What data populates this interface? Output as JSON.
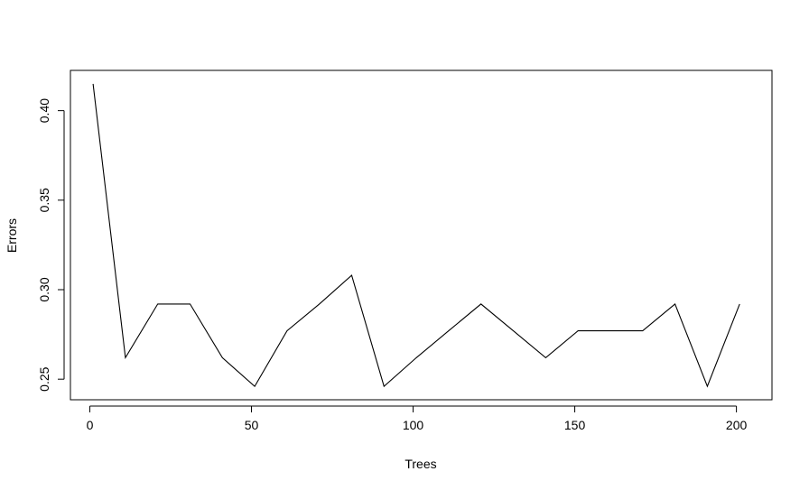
{
  "chart_data": {
    "type": "line",
    "title": "",
    "xlabel": "Trees",
    "ylabel": "Errors",
    "xlim": [
      -6,
      211
    ],
    "ylim": [
      0.2385,
      0.4225
    ],
    "x_ticks": [
      0,
      50,
      100,
      150,
      200
    ],
    "y_ticks": [
      0.25,
      0.3,
      0.35,
      0.4
    ],
    "x_tick_labels": [
      "0",
      "50",
      "100",
      "150",
      "200"
    ],
    "y_tick_labels": [
      "0.25",
      "0.30",
      "0.35",
      "0.40"
    ],
    "grid": false,
    "series": [
      {
        "x": [
          1,
          11,
          21,
          31,
          41,
          51,
          61,
          71,
          81,
          91,
          101,
          111,
          121,
          131,
          141,
          151,
          161,
          171,
          181,
          191,
          201
        ],
        "values": [
          0.415,
          0.262,
          0.292,
          0.292,
          0.262,
          0.246,
          0.277,
          0.292,
          0.308,
          0.246,
          0.262,
          0.277,
          0.292,
          0.277,
          0.262,
          0.277,
          0.277,
          0.277,
          0.292,
          0.246,
          0.292
        ]
      }
    ]
  }
}
